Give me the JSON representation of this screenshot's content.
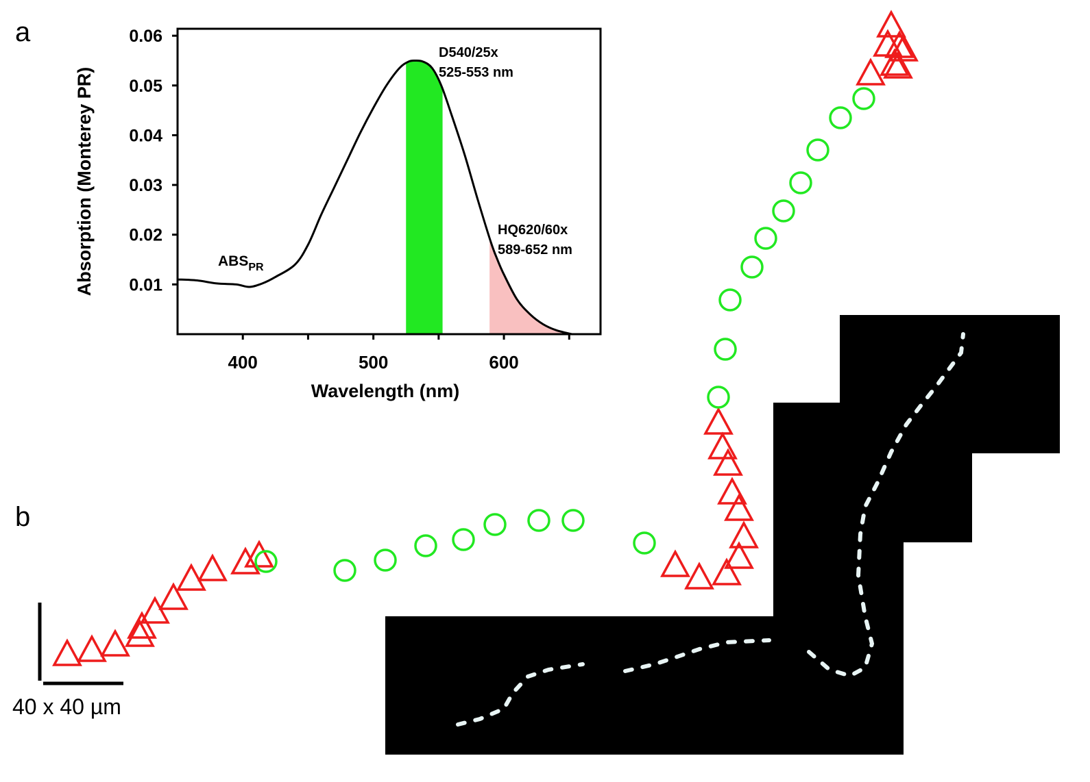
{
  "panel_labels": {
    "a": "a",
    "b": "b"
  },
  "chart_data": {
    "type": "line",
    "xlabel": "Wavelength (nm)",
    "ylabel": "Absorption (Monterey PR)",
    "xlim": [
      350,
      674
    ],
    "ylim": [
      0,
      0.0614
    ],
    "x_ticks": [
      400,
      450,
      500,
      550,
      600,
      650
    ],
    "x_tick_labels": [
      "400",
      "",
      "500",
      "",
      "600",
      ""
    ],
    "y_ticks": [
      0.01,
      0.02,
      0.03,
      0.04,
      0.05,
      0.06
    ],
    "y_tick_labels": [
      "0.01",
      "0.02",
      "0.03",
      "0.04",
      "0.05",
      "0.06"
    ],
    "grid": false,
    "series": [
      {
        "name": "ABS_PR",
        "label_main": "ABS",
        "label_sub": "PR",
        "color": "#000000",
        "x": [
          350,
          365,
          380,
          395,
          405,
          415,
          425,
          440,
          450,
          460,
          470,
          480,
          490,
          500,
          510,
          520,
          527,
          532,
          538,
          545,
          552,
          560,
          570,
          580,
          590,
          595,
          600,
          610,
          620,
          630,
          640,
          652
        ],
        "y": [
          0.011,
          0.0108,
          0.0102,
          0.01,
          0.0095,
          0.0102,
          0.0115,
          0.014,
          0.018,
          0.024,
          0.0295,
          0.035,
          0.0405,
          0.0455,
          0.05,
          0.0535,
          0.0548,
          0.055,
          0.0548,
          0.0535,
          0.05,
          0.044,
          0.036,
          0.027,
          0.0185,
          0.015,
          0.012,
          0.007,
          0.004,
          0.002,
          0.0008,
          0.0
        ]
      }
    ],
    "bands": [
      {
        "name": "D540/25x",
        "range_label": "525-553 nm",
        "from": 525,
        "to": 553,
        "color": "#22e822"
      },
      {
        "name": "HQ620/60x",
        "range_label": "589-652 nm",
        "from": 589,
        "to": 652,
        "color": "#f9c0c0"
      }
    ]
  },
  "panel_b": {
    "scale_bar_label": "40 x 40 µm",
    "colors": {
      "triangle": "#ee1c1c",
      "circle": "#22e822",
      "image_bg": "#000000",
      "worm": "#e8f4f4"
    },
    "marker_types": [
      "red-triangle",
      "green-circle"
    ]
  }
}
